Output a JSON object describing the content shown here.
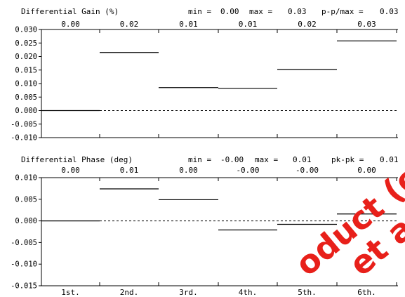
{
  "chart_data": [
    {
      "type": "step",
      "title": "Differential Gain (%)",
      "stats": [
        {
          "label": "min =",
          "value": "0.00"
        },
        {
          "label": "max =",
          "value": "0.03"
        },
        {
          "label": "p-p/max =",
          "value": "0.03"
        }
      ],
      "categories": [
        "1st.",
        "2nd.",
        "3rd.",
        "4th.",
        "5th.",
        "6th."
      ],
      "values": [
        0.0,
        0.0215,
        0.0085,
        0.0082,
        0.0152,
        0.0258
      ],
      "value_labels": [
        "0.00",
        "0.02",
        "0.01",
        "0.01",
        "0.02",
        "0.03"
      ],
      "yticks": [
        "0.030",
        "0.025",
        "0.020",
        "0.015",
        "0.010",
        "0.005",
        "0.000",
        "-0.005",
        "-0.010"
      ],
      "ylim": [
        -0.01,
        0.03
      ],
      "reference_line": 0.0
    },
    {
      "type": "step",
      "title": "Differential Phase (deg)",
      "stats": [
        {
          "label": "min =",
          "value": "-0.00"
        },
        {
          "label": "max =",
          "value": "0.01"
        },
        {
          "label": "pk-pk =",
          "value": "0.01"
        }
      ],
      "categories": [
        "1st.",
        "2nd.",
        "3rd.",
        "4th.",
        "5th.",
        "6th."
      ],
      "values": [
        0.0,
        0.0074,
        0.0049,
        -0.0021,
        -0.0008,
        0.0016
      ],
      "value_labels": [
        "0.00",
        "0.01",
        "0.00",
        "-0.00",
        "-0.00",
        "0.00"
      ],
      "yticks": [
        "0.010",
        "0.005",
        "0.000",
        "-0.005",
        "-0.010",
        "-0.015"
      ],
      "ylim": [
        -0.015,
        0.01
      ],
      "reference_line": 0.0
    }
  ],
  "x_axis": {
    "labels": [
      "1st.",
      "2nd.",
      "3rd.",
      "4th.",
      "5th.",
      "6th."
    ]
  },
  "watermark": {
    "lines": [
      "oduct (or p",
      "et are"
    ],
    "color": "#e8201a"
  }
}
